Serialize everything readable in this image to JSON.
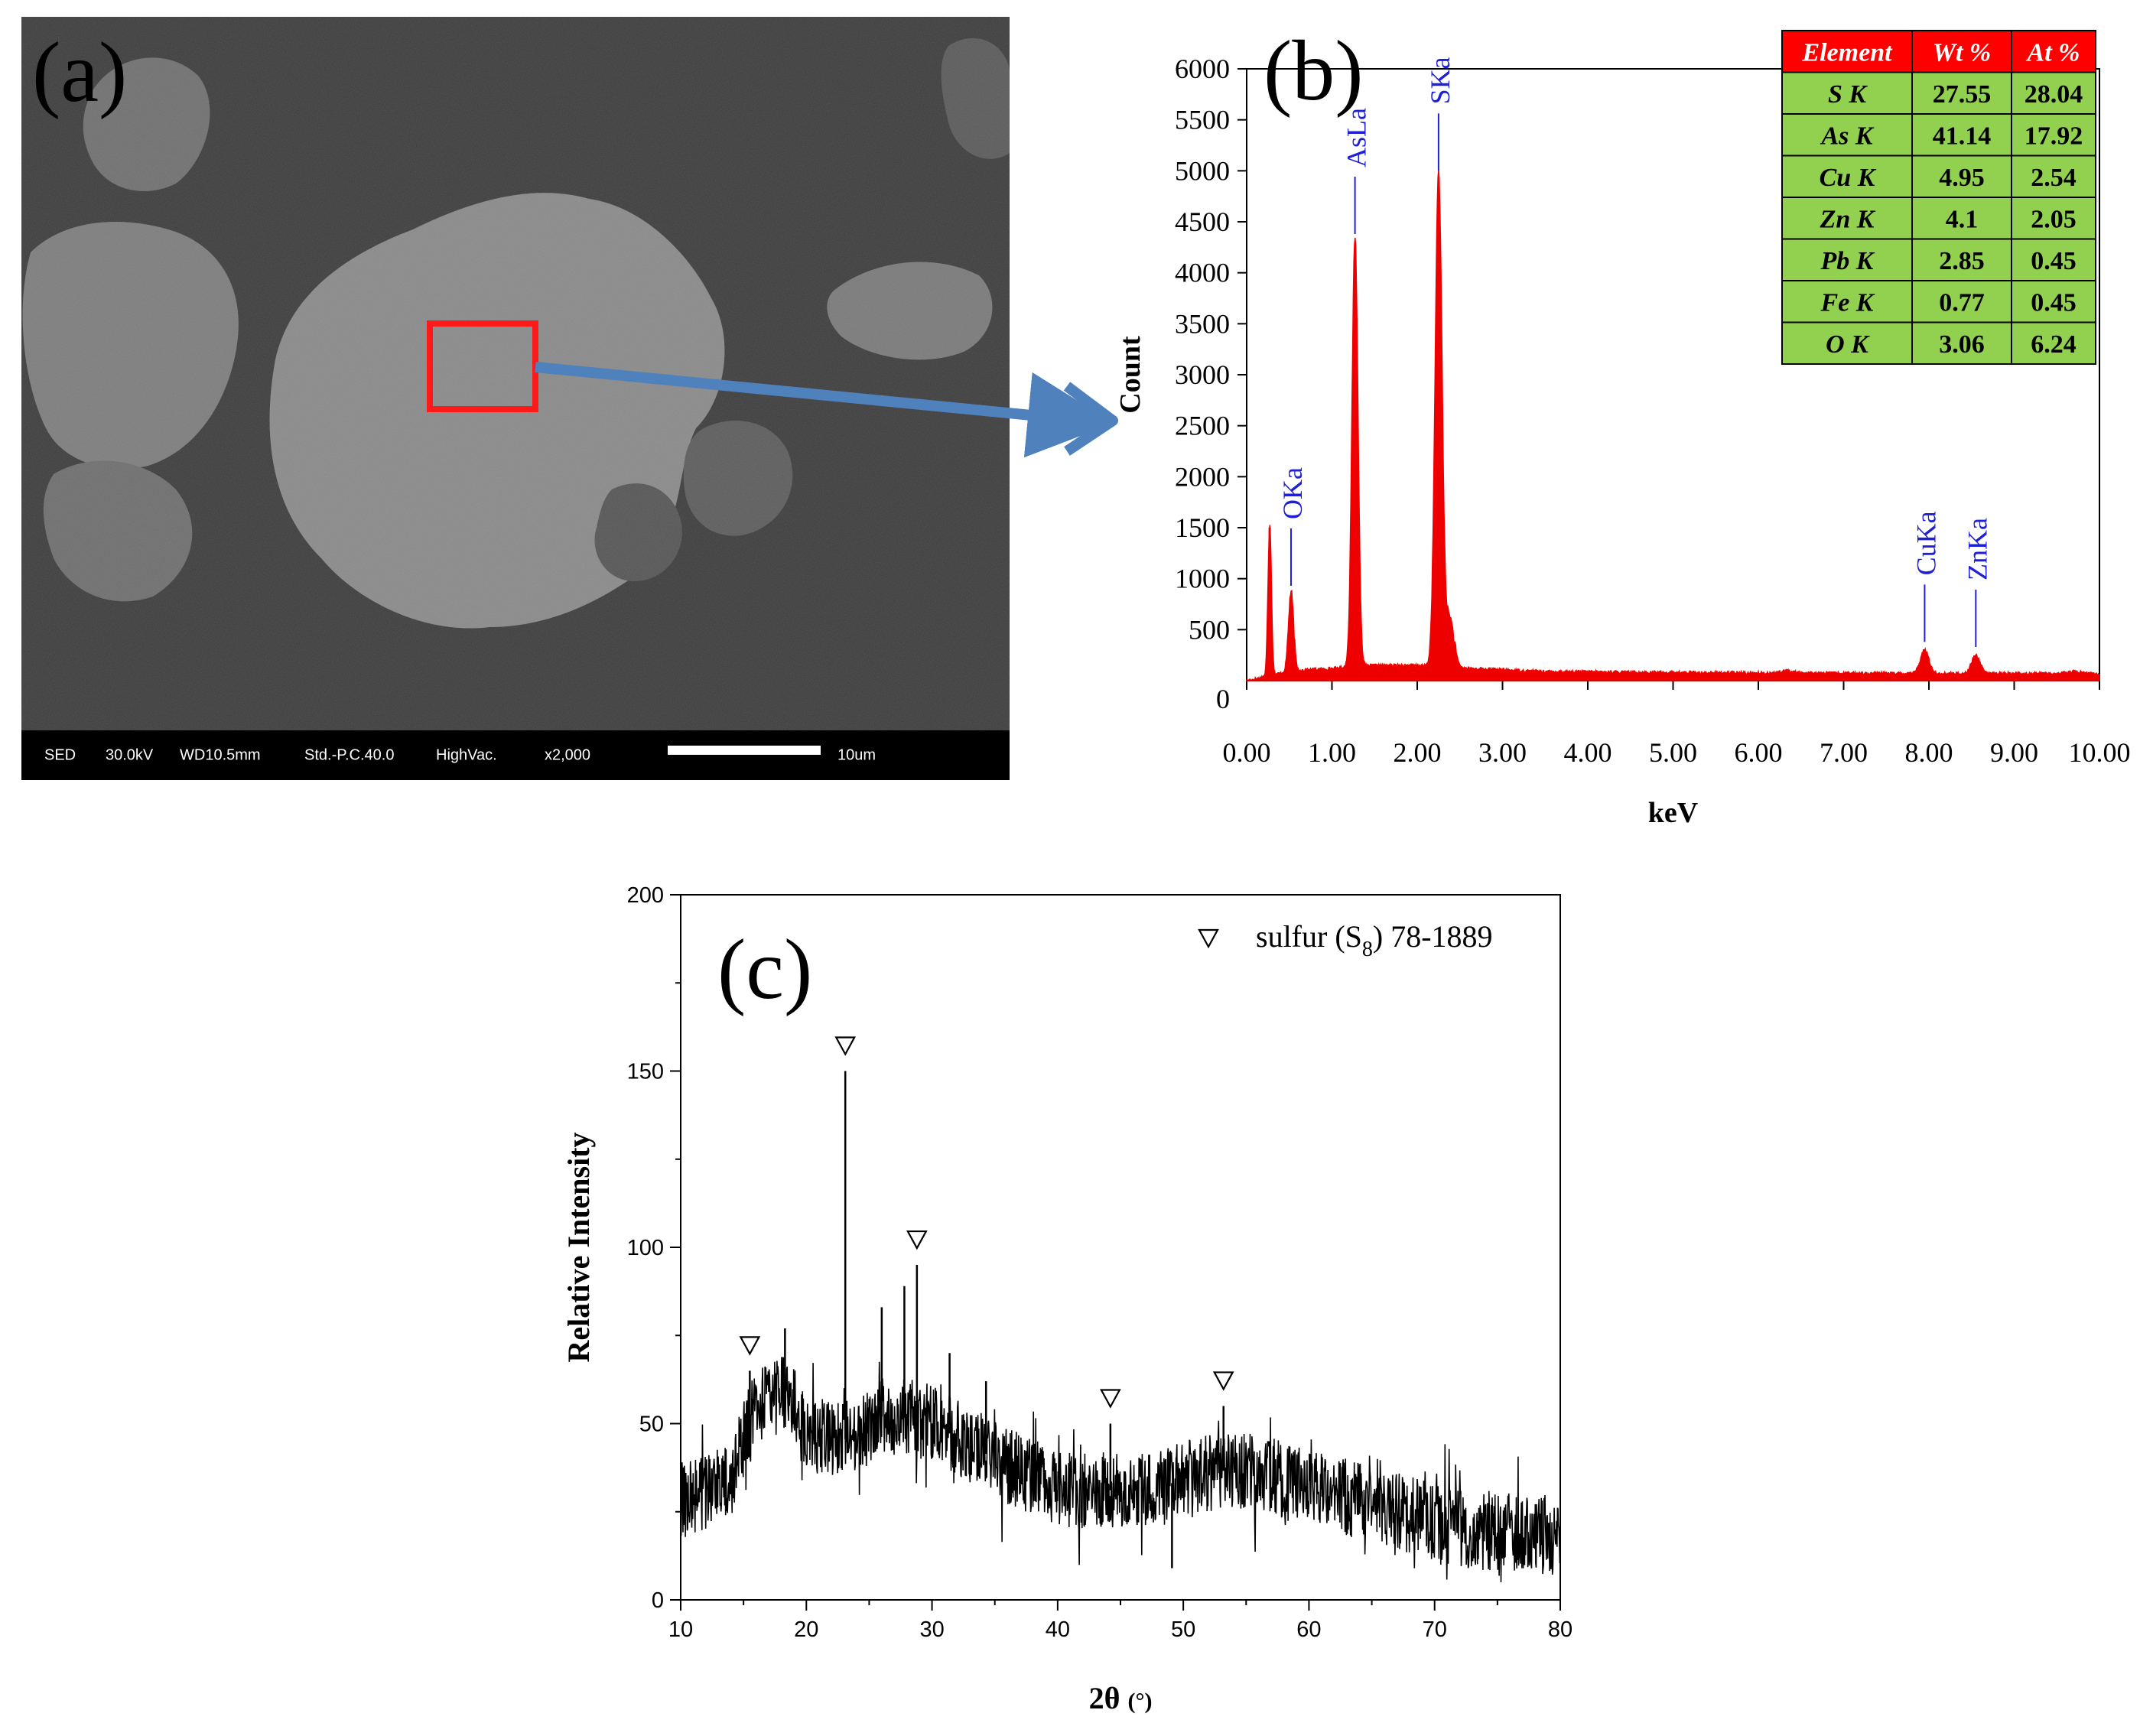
{
  "panel_a": {
    "label": "(a)",
    "info_bar": {
      "mode": "SED",
      "voltage": "30.0kV",
      "wd": "WD10.5mm",
      "std": "Std.-P.C.40.0",
      "vac": "HighVac.",
      "mag": "x2,000",
      "scale_label": "10um"
    }
  },
  "panel_b": {
    "label": "(b)",
    "table": {
      "headers": [
        "Element",
        "Wt %",
        "At %"
      ],
      "rows": [
        [
          "S K",
          "27.55",
          "28.04"
        ],
        [
          "As K",
          "41.14",
          "17.92"
        ],
        [
          "Cu K",
          "4.95",
          "2.54"
        ],
        [
          "Zn K",
          "4.1",
          "2.05"
        ],
        [
          "Pb K",
          "2.85",
          "0.45"
        ],
        [
          "Fe K",
          "0.77",
          "0.45"
        ],
        [
          "O K",
          "3.06",
          "6.24"
        ]
      ]
    }
  },
  "panel_c": {
    "label": "(c)"
  },
  "colors": {
    "sem_bg": "#3c3c3c",
    "sem_particle": "#8a8a8a",
    "highlight_box": "#ff1a1a",
    "arrow": "#4f81bd",
    "eds_spectrum": "#ee0000",
    "peak_label": "#1f1fd6",
    "table_header_bg": "#ff0000",
    "table_cell_bg": "#92d050",
    "xrd_line": "#000000"
  },
  "chart_data": [
    {
      "id": "eds",
      "type": "line",
      "title": "",
      "xlabel": "keV",
      "ylabel": "Count",
      "xlim": [
        0,
        10
      ],
      "ylim": [
        0,
        6000
      ],
      "x_ticks": [
        "0.00",
        "1.00",
        "2.00",
        "3.00",
        "4.00",
        "5.00",
        "6.00",
        "7.00",
        "8.00",
        "9.00",
        "10.00"
      ],
      "y_ticks": [
        "0",
        "500",
        "1000",
        "1500",
        "2000",
        "2500",
        "3000",
        "3500",
        "4000",
        "4500",
        "5000",
        "5500",
        "6000"
      ],
      "background": [
        [
          0.0,
          0
        ],
        [
          0.12,
          20
        ],
        [
          0.3,
          60
        ],
        [
          0.6,
          100
        ],
        [
          1.0,
          120
        ],
        [
          1.5,
          150
        ],
        [
          2.0,
          150
        ],
        [
          2.6,
          120
        ],
        [
          3.5,
          90
        ],
        [
          5.0,
          80
        ],
        [
          6.2,
          75
        ],
        [
          6.35,
          100
        ],
        [
          6.5,
          75
        ],
        [
          7.8,
          70
        ],
        [
          9.5,
          70
        ],
        [
          9.7,
          90
        ],
        [
          10.0,
          60
        ]
      ],
      "peaks": [
        {
          "x": 0.27,
          "y": 1500,
          "w": 0.02
        },
        {
          "x": 0.52,
          "y": 780,
          "w": 0.03
        },
        {
          "x": 1.27,
          "y": 4230,
          "w": 0.035
        },
        {
          "x": 2.25,
          "y": 4850,
          "w": 0.04
        },
        {
          "x": 2.38,
          "y": 480,
          "w": 0.05
        },
        {
          "x": 7.95,
          "y": 230,
          "w": 0.05
        },
        {
          "x": 8.55,
          "y": 180,
          "w": 0.05
        }
      ],
      "peak_labels": [
        {
          "label": "OKa",
          "x": 0.52,
          "y": 780
        },
        {
          "label": "AsLa",
          "x": 1.27,
          "y": 4230
        },
        {
          "label": "SKa",
          "x": 2.25,
          "y": 4850
        },
        {
          "label": "CuKa",
          "x": 7.95,
          "y": 230
        },
        {
          "label": "ZnKa",
          "x": 8.55,
          "y": 180
        }
      ]
    },
    {
      "id": "xrd",
      "type": "line",
      "title": "",
      "xlabel": "2θ",
      "xlabel_unit": "(°)",
      "ylabel": "Relative Intensity",
      "xlim": [
        10,
        80
      ],
      "ylim": [
        0,
        200
      ],
      "x_ticks": [
        "10",
        "20",
        "30",
        "40",
        "50",
        "60",
        "70",
        "80"
      ],
      "y_ticks": [
        "0",
        "50",
        "100",
        "150",
        "200"
      ],
      "legend": {
        "symbol": "∇",
        "text": "sulfur (S",
        "subscript": "8",
        "text_after": ") 78-1889",
        "location": "top-right"
      },
      "envelope": [
        [
          10,
          28
        ],
        [
          12,
          30
        ],
        [
          14,
          35
        ],
        [
          15,
          45
        ],
        [
          16,
          55
        ],
        [
          17,
          58
        ],
        [
          18,
          60
        ],
        [
          19,
          55
        ],
        [
          20,
          47
        ],
        [
          22,
          45
        ],
        [
          24,
          46
        ],
        [
          26,
          52
        ],
        [
          28,
          52
        ],
        [
          30,
          50
        ],
        [
          32,
          46
        ],
        [
          34,
          42
        ],
        [
          36,
          38
        ],
        [
          38,
          35
        ],
        [
          40,
          32
        ],
        [
          42,
          31
        ],
        [
          44,
          31
        ],
        [
          46,
          32
        ],
        [
          48,
          32
        ],
        [
          50,
          34
        ],
        [
          52,
          36
        ],
        [
          54,
          37
        ],
        [
          56,
          36
        ],
        [
          58,
          34
        ],
        [
          60,
          32
        ],
        [
          62,
          30
        ],
        [
          64,
          28
        ],
        [
          66,
          26
        ],
        [
          68,
          24
        ],
        [
          70,
          22
        ],
        [
          72,
          20
        ],
        [
          75,
          19
        ],
        [
          78,
          18
        ],
        [
          80,
          18
        ]
      ],
      "spikes": [
        {
          "x": 23.1,
          "y": 150
        },
        {
          "x": 28.8,
          "y": 95
        },
        {
          "x": 27.8,
          "y": 89
        },
        {
          "x": 26.0,
          "y": 83
        },
        {
          "x": 31.4,
          "y": 70
        },
        {
          "x": 18.3,
          "y": 77
        },
        {
          "x": 15.5,
          "y": 65
        },
        {
          "x": 44.2,
          "y": 50
        },
        {
          "x": 53.2,
          "y": 55
        },
        {
          "x": 34.3,
          "y": 62
        },
        {
          "x": 49.1,
          "y": 9
        }
      ],
      "markers": [
        {
          "x": 15.5,
          "y": 65
        },
        {
          "x": 23.1,
          "y": 150
        },
        {
          "x": 28.8,
          "y": 95
        },
        {
          "x": 44.2,
          "y": 50
        },
        {
          "x": 53.2,
          "y": 55
        }
      ]
    }
  ]
}
